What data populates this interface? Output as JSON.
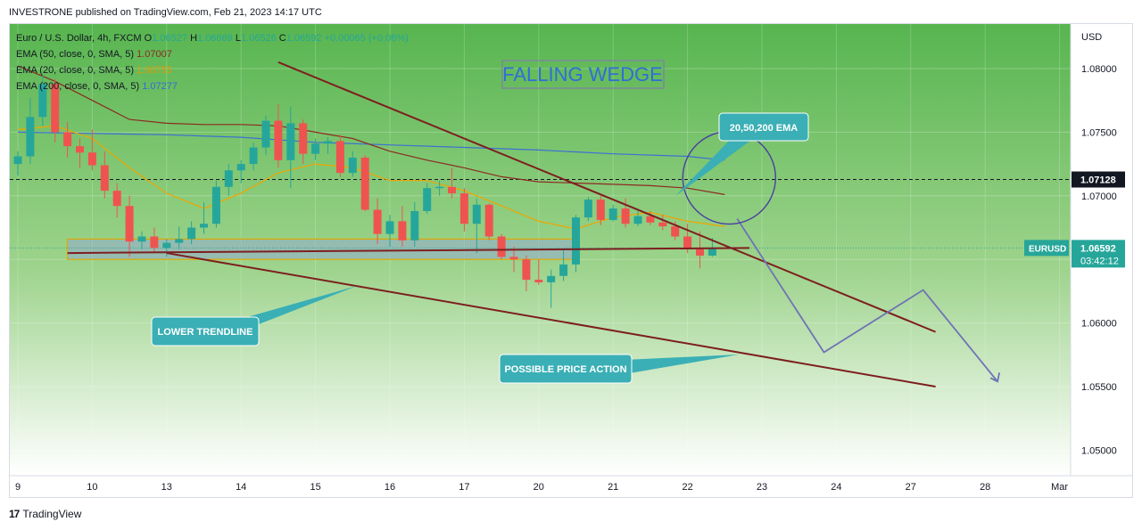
{
  "header": {
    "published": "INVESTRONE published on TradingView.com, Feb 21, 2023 14:17 UTC"
  },
  "legend": {
    "symbol": "Euro / U.S. Dollar, 4h, FXCM",
    "open_label": "O",
    "open": "1.06527",
    "high_label": "H",
    "high": "1.06669",
    "low_label": "L",
    "low": "1.06526",
    "close_label": "C",
    "close": "1.06592",
    "change": "+0.00065 (+0.06%)",
    "ema50_label": "EMA (50, close, 0, SMA, 5)",
    "ema50_value": "1.07007",
    "ema20_label": "EMA (20, close, 0, SMA, 5)",
    "ema20_value": "1.06755",
    "ema200_label": "EMA (200, close, 0, SMA, 5)",
    "ema200_value": "1.07277"
  },
  "footer": {
    "brand": "TradingView",
    "brand_mark": "17"
  },
  "colors": {
    "up": "#26a69a",
    "down": "#ef5350",
    "ema20": "#f0a500",
    "ema50": "#8b2b20",
    "ema200": "#3d6fd4",
    "trendline": "#7d1f1f",
    "callout": "#3aafb5",
    "projection": "#6f73b5"
  },
  "annotations": {
    "title": "FALLING WEDGE",
    "ema_callout": "20,50,200 EMA",
    "lower_trendline": "LOWER TRENDLINE",
    "possible_price_action": "POSSIBLE PRICE ACTION"
  },
  "chart_data": {
    "type": "candlestick",
    "symbol_badge": "EURUSD",
    "ylabel": "USD",
    "ylim": [
      1.048,
      1.0835
    ],
    "y_ticks": [
      "1.08000",
      "1.07500",
      "1.07000",
      "1.06500",
      "1.06000",
      "1.05500",
      "1.05000"
    ],
    "y_tick_values": [
      1.08,
      1.075,
      1.07,
      1.065,
      1.06,
      1.055,
      1.05
    ],
    "x_ticks": [
      "9",
      "10",
      "13",
      "14",
      "15",
      "16",
      "17",
      "20",
      "21",
      "22",
      "23",
      "24",
      "27",
      "28",
      "Mar"
    ],
    "x_tick_index": [
      0,
      6,
      12,
      18,
      24,
      30,
      36,
      42,
      48,
      54,
      60,
      66,
      72,
      78,
      84
    ],
    "last_price_label": "1.06592",
    "countdown": "03:42:12",
    "marked_level": 1.07128,
    "marked_level_label": "1.07128",
    "candles": [
      {
        "o": 1.0725,
        "h": 1.0735,
        "l": 1.0716,
        "c": 1.0731
      },
      {
        "o": 1.0731,
        "h": 1.0777,
        "l": 1.0725,
        "c": 1.0762
      },
      {
        "o": 1.0762,
        "h": 1.0795,
        "l": 1.0755,
        "c": 1.0788
      },
      {
        "o": 1.0788,
        "h": 1.0792,
        "l": 1.0742,
        "c": 1.075
      },
      {
        "o": 1.075,
        "h": 1.0758,
        "l": 1.073,
        "c": 1.0739
      },
      {
        "o": 1.0739,
        "h": 1.0745,
        "l": 1.0722,
        "c": 1.0734
      },
      {
        "o": 1.0734,
        "h": 1.0752,
        "l": 1.072,
        "c": 1.0724
      },
      {
        "o": 1.0724,
        "h": 1.0735,
        "l": 1.0698,
        "c": 1.0704
      },
      {
        "o": 1.0704,
        "h": 1.071,
        "l": 1.0683,
        "c": 1.0692
      },
      {
        "o": 1.0692,
        "h": 1.07,
        "l": 1.0652,
        "c": 1.0664
      },
      {
        "o": 1.0664,
        "h": 1.0672,
        "l": 1.0658,
        "c": 1.0668
      },
      {
        "o": 1.0668,
        "h": 1.0675,
        "l": 1.0655,
        "c": 1.0659
      },
      {
        "o": 1.0659,
        "h": 1.0666,
        "l": 1.0652,
        "c": 1.0663
      },
      {
        "o": 1.0663,
        "h": 1.0676,
        "l": 1.0658,
        "c": 1.0666
      },
      {
        "o": 1.0666,
        "h": 1.068,
        "l": 1.0662,
        "c": 1.0675
      },
      {
        "o": 1.0675,
        "h": 1.0695,
        "l": 1.067,
        "c": 1.0678
      },
      {
        "o": 1.0678,
        "h": 1.0712,
        "l": 1.0675,
        "c": 1.0707
      },
      {
        "o": 1.0707,
        "h": 1.0725,
        "l": 1.07,
        "c": 1.072
      },
      {
        "o": 1.072,
        "h": 1.0728,
        "l": 1.071,
        "c": 1.0725
      },
      {
        "o": 1.0725,
        "h": 1.0742,
        "l": 1.072,
        "c": 1.0738
      },
      {
        "o": 1.0738,
        "h": 1.0763,
        "l": 1.0732,
        "c": 1.0759
      },
      {
        "o": 1.0759,
        "h": 1.0772,
        "l": 1.0722,
        "c": 1.0728
      },
      {
        "o": 1.0728,
        "h": 1.077,
        "l": 1.0706,
        "c": 1.0757
      },
      {
        "o": 1.0757,
        "h": 1.076,
        "l": 1.0725,
        "c": 1.0733
      },
      {
        "o": 1.0733,
        "h": 1.0745,
        "l": 1.0728,
        "c": 1.0741
      },
      {
        "o": 1.0741,
        "h": 1.0746,
        "l": 1.0733,
        "c": 1.0743
      },
      {
        "o": 1.0743,
        "h": 1.0748,
        "l": 1.0715,
        "c": 1.0718
      },
      {
        "o": 1.0718,
        "h": 1.0735,
        "l": 1.0715,
        "c": 1.073
      },
      {
        "o": 1.073,
        "h": 1.0732,
        "l": 1.0688,
        "c": 1.0689
      },
      {
        "o": 1.0689,
        "h": 1.0698,
        "l": 1.0662,
        "c": 1.067
      },
      {
        "o": 1.067,
        "h": 1.0685,
        "l": 1.066,
        "c": 1.068
      },
      {
        "o": 1.068,
        "h": 1.0692,
        "l": 1.066,
        "c": 1.0665
      },
      {
        "o": 1.0665,
        "h": 1.0695,
        "l": 1.066,
        "c": 1.0688
      },
      {
        "o": 1.0688,
        "h": 1.071,
        "l": 1.0686,
        "c": 1.0706
      },
      {
        "o": 1.0706,
        "h": 1.0712,
        "l": 1.07,
        "c": 1.0707
      },
      {
        "o": 1.0707,
        "h": 1.0722,
        "l": 1.0698,
        "c": 1.0702
      },
      {
        "o": 1.0702,
        "h": 1.0706,
        "l": 1.0672,
        "c": 1.0678
      },
      {
        "o": 1.0678,
        "h": 1.0698,
        "l": 1.0655,
        "c": 1.0693
      },
      {
        "o": 1.0693,
        "h": 1.0694,
        "l": 1.0665,
        "c": 1.0668
      },
      {
        "o": 1.0668,
        "h": 1.067,
        "l": 1.065,
        "c": 1.0652
      },
      {
        "o": 1.0652,
        "h": 1.066,
        "l": 1.064,
        "c": 1.065
      },
      {
        "o": 1.065,
        "h": 1.0653,
        "l": 1.0625,
        "c": 1.0634
      },
      {
        "o": 1.0634,
        "h": 1.065,
        "l": 1.063,
        "c": 1.0632
      },
      {
        "o": 1.0632,
        "h": 1.0642,
        "l": 1.0612,
        "c": 1.0637
      },
      {
        "o": 1.0637,
        "h": 1.0658,
        "l": 1.0633,
        "c": 1.0646
      },
      {
        "o": 1.0646,
        "h": 1.0685,
        "l": 1.064,
        "c": 1.0683
      },
      {
        "o": 1.0683,
        "h": 1.0699,
        "l": 1.068,
        "c": 1.0697
      },
      {
        "o": 1.0697,
        "h": 1.07,
        "l": 1.0677,
        "c": 1.0681
      },
      {
        "o": 1.0681,
        "h": 1.0693,
        "l": 1.068,
        "c": 1.069
      },
      {
        "o": 1.069,
        "h": 1.0698,
        "l": 1.0675,
        "c": 1.0678
      },
      {
        "o": 1.0678,
        "h": 1.0688,
        "l": 1.0676,
        "c": 1.0684
      },
      {
        "o": 1.0684,
        "h": 1.0688,
        "l": 1.0677,
        "c": 1.0679
      },
      {
        "o": 1.0679,
        "h": 1.0685,
        "l": 1.0673,
        "c": 1.0676
      },
      {
        "o": 1.0676,
        "h": 1.068,
        "l": 1.0665,
        "c": 1.0668
      },
      {
        "o": 1.0668,
        "h": 1.0678,
        "l": 1.0655,
        "c": 1.0658
      },
      {
        "o": 1.0658,
        "h": 1.0672,
        "l": 1.0643,
        "c": 1.0653
      },
      {
        "o": 1.0653,
        "h": 1.0667,
        "l": 1.0652,
        "c": 1.0659
      }
    ],
    "ema20": [
      [
        0,
        1.0752
      ],
      [
        3,
        1.0755
      ],
      [
        6,
        1.0745
      ],
      [
        9,
        1.0722
      ],
      [
        12,
        1.0702
      ],
      [
        15,
        1.069
      ],
      [
        18,
        1.0702
      ],
      [
        21,
        1.0718
      ],
      [
        24,
        1.0725
      ],
      [
        27,
        1.0722
      ],
      [
        30,
        1.0712
      ],
      [
        33,
        1.0712
      ],
      [
        36,
        1.0704
      ],
      [
        39,
        1.0692
      ],
      [
        42,
        1.068
      ],
      [
        45,
        1.0674
      ],
      [
        48,
        1.0683
      ],
      [
        51,
        1.0687
      ],
      [
        54,
        1.068
      ],
      [
        57,
        1.0676
      ]
    ],
    "ema50": [
      [
        0,
        1.0802
      ],
      [
        3,
        1.079
      ],
      [
        6,
        1.0775
      ],
      [
        9,
        1.076
      ],
      [
        12,
        1.0757
      ],
      [
        15,
        1.0756
      ],
      [
        18,
        1.0756
      ],
      [
        21,
        1.0755
      ],
      [
        24,
        1.075
      ],
      [
        27,
        1.0745
      ],
      [
        30,
        1.0735
      ],
      [
        33,
        1.0728
      ],
      [
        36,
        1.0722
      ],
      [
        39,
        1.0715
      ],
      [
        42,
        1.0711
      ],
      [
        45,
        1.071
      ],
      [
        48,
        1.0709
      ],
      [
        51,
        1.0708
      ],
      [
        54,
        1.0706
      ],
      [
        57,
        1.0701
      ]
    ],
    "ema200": [
      [
        0,
        1.075
      ],
      [
        6,
        1.0749
      ],
      [
        12,
        1.0748
      ],
      [
        18,
        1.0746
      ],
      [
        24,
        1.0742
      ],
      [
        30,
        1.074
      ],
      [
        36,
        1.0738
      ],
      [
        42,
        1.0736
      ],
      [
        48,
        1.0733
      ],
      [
        54,
        1.0731
      ],
      [
        57,
        1.0728
      ]
    ],
    "support_zone": {
      "x0": 4,
      "x1": 45,
      "y0": 1.065,
      "y1": 1.0666
    },
    "horizontal_line": {
      "x0": 4,
      "x1": 59,
      "y0": 1.0655,
      "y1": 1.0659
    },
    "upper_trendline": {
      "x0": 21,
      "y0": 1.0805,
      "x1": 74,
      "y1": 1.0593
    },
    "lower_trendline": {
      "x0": 12,
      "y0": 1.0655,
      "x1": 74,
      "y1": 1.055
    },
    "projection_path": [
      [
        58,
        1.0682
      ],
      [
        65,
        1.0577
      ],
      [
        73,
        1.0626
      ],
      [
        79,
        1.0554
      ]
    ],
    "ema_circle_center": [
      57,
      1.071
    ]
  }
}
